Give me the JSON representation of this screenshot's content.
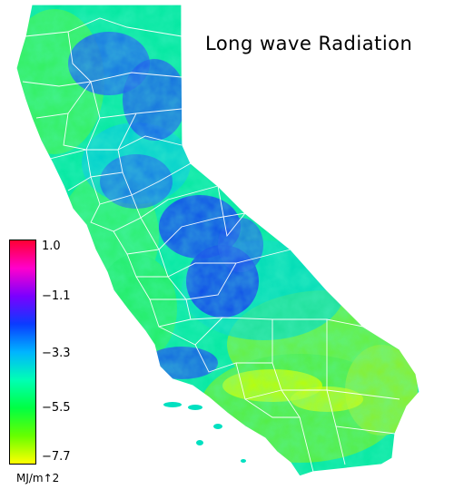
{
  "map": {
    "title": "Long wave Radiation",
    "region": "California",
    "units": "MJ/m↑2",
    "colorbar": {
      "min": -7.7,
      "max": 1.0,
      "ticks": [
        "1.0",
        "−1.1",
        "−3.3",
        "−5.5",
        "−7.7"
      ],
      "colors": [
        "#ff0033",
        "#ff00cc",
        "#7a00ff",
        "#0a3cff",
        "#00b4ff",
        "#00ffb4",
        "#00ff44",
        "#66ff00",
        "#ffff00"
      ]
    },
    "colors": {
      "background": "#ffffff",
      "boundaries": "#ffffff"
    }
  }
}
